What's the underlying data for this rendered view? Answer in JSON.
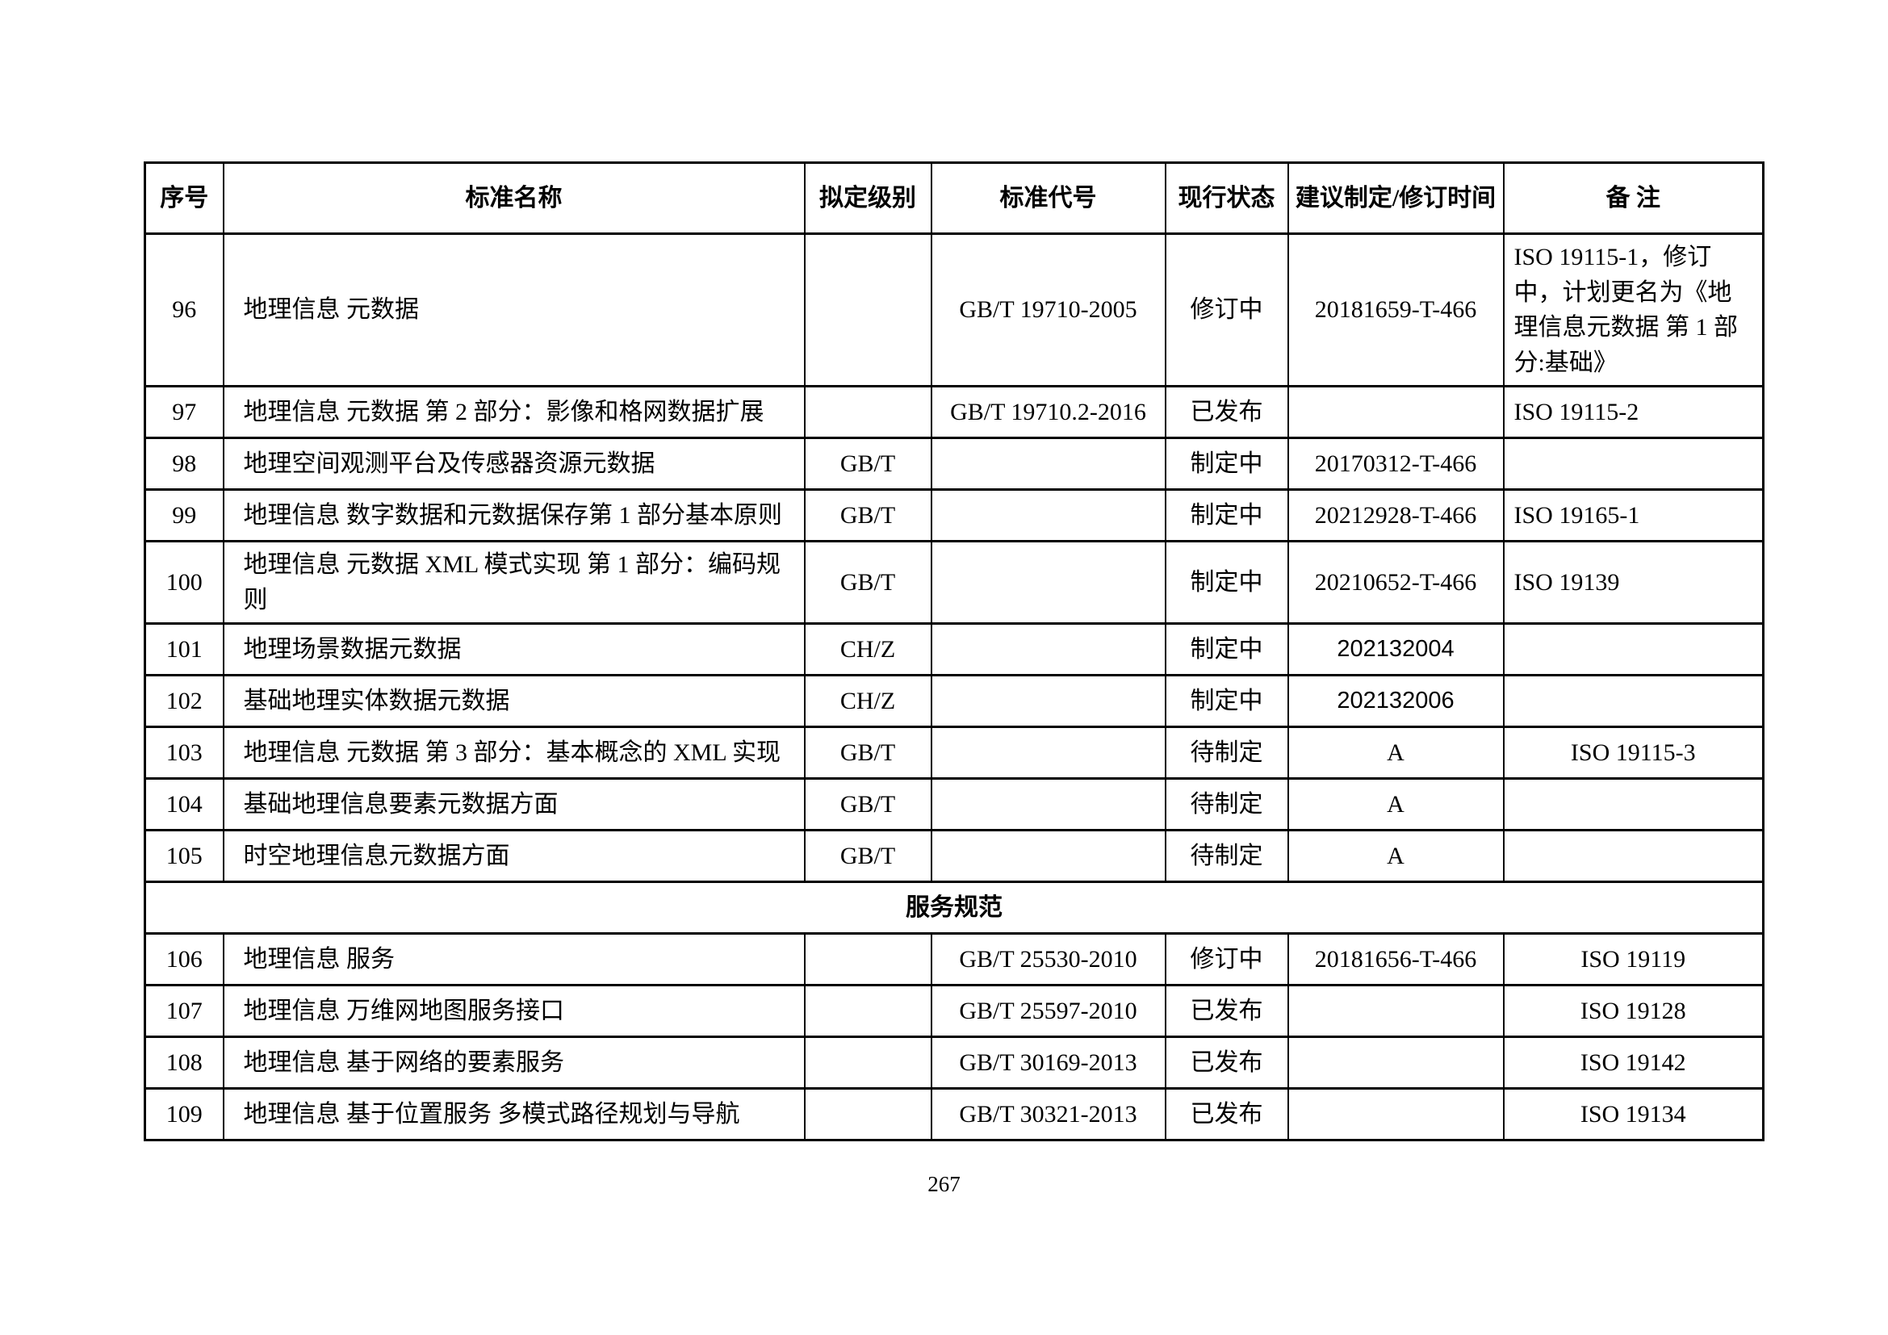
{
  "page": {
    "number": "267"
  },
  "table": {
    "headers": [
      "序号",
      "标准名称",
      "拟定级别",
      "标准代号",
      "现行状态",
      "建议制定/修订时间",
      "备 注"
    ],
    "rows": [
      {
        "no": "96",
        "name": "地理信息 元数据",
        "level": "",
        "code": "GB/T 19710-2005",
        "status": "修订中",
        "time": "20181659-T-466",
        "time_sans": false,
        "remark": "ISO 19115-1，修订中，计划更名为《地理信息元数据 第 1 部分:基础》",
        "remark_align": "left"
      },
      {
        "no": "97",
        "name": "地理信息 元数据 第 2 部分：影像和格网数据扩展",
        "level": "",
        "code": "GB/T 19710.2-2016",
        "status": "已发布",
        "time": "",
        "time_sans": false,
        "remark": "ISO 19115-2",
        "remark_align": "left"
      },
      {
        "no": "98",
        "name": "地理空间观测平台及传感器资源元数据",
        "level": "GB/T",
        "code": "",
        "status": "制定中",
        "time": "20170312-T-466",
        "time_sans": false,
        "remark": "",
        "remark_align": "left"
      },
      {
        "no": "99",
        "name": "地理信息 数字数据和元数据保存第 1 部分基本原则",
        "level": "GB/T",
        "code": "",
        "status": "制定中",
        "time": "20212928-T-466",
        "time_sans": false,
        "remark": "ISO 19165-1",
        "remark_align": "left"
      },
      {
        "no": "100",
        "name": "地理信息 元数据 XML 模式实现 第 1 部分：编码规则",
        "level": "GB/T",
        "code": "",
        "status": "制定中",
        "time": "20210652-T-466",
        "time_sans": false,
        "remark": "ISO 19139",
        "remark_align": "left"
      },
      {
        "no": "101",
        "name": "地理场景数据元数据",
        "level": "CH/Z",
        "code": "",
        "status": "制定中",
        "time": "202132004",
        "time_sans": true,
        "remark": "",
        "remark_align": "left"
      },
      {
        "no": "102",
        "name": "基础地理实体数据元数据",
        "level": "CH/Z",
        "code": "",
        "status": "制定中",
        "time": "202132006",
        "time_sans": true,
        "remark": "",
        "remark_align": "left"
      },
      {
        "no": "103",
        "name": "地理信息 元数据 第 3 部分：基本概念的 XML 实现",
        "level": "GB/T",
        "code": "",
        "status": "待制定",
        "time": "A",
        "time_sans": false,
        "remark": "ISO 19115-3",
        "remark_align": "center"
      },
      {
        "no": "104",
        "name": "基础地理信息要素元数据方面",
        "level": "GB/T",
        "code": "",
        "status": "待制定",
        "time": "A",
        "time_sans": false,
        "remark": "",
        "remark_align": "left"
      },
      {
        "no": "105",
        "name": "时空地理信息元数据方面",
        "level": "GB/T",
        "code": "",
        "status": "待制定",
        "time": "A",
        "time_sans": false,
        "remark": "",
        "remark_align": "left"
      },
      {
        "section": "服务规范"
      },
      {
        "no": "106",
        "name": "地理信息 服务",
        "level": "",
        "code": "GB/T 25530-2010",
        "status": "修订中",
        "time": "20181656-T-466",
        "time_sans": false,
        "remark": "ISO 19119",
        "remark_align": "center"
      },
      {
        "no": "107",
        "name": "地理信息 万维网地图服务接口",
        "level": "",
        "code": "GB/T 25597-2010",
        "status": "已发布",
        "time": "",
        "time_sans": false,
        "remark": "ISO 19128",
        "remark_align": "center"
      },
      {
        "no": "108",
        "name": "地理信息 基于网络的要素服务",
        "level": "",
        "code": "GB/T 30169-2013",
        "status": "已发布",
        "time": "",
        "time_sans": false,
        "remark": "ISO 19142",
        "remark_align": "center"
      },
      {
        "no": "109",
        "name": "地理信息 基于位置服务 多模式路径规划与导航",
        "level": "",
        "code": "GB/T 30321-2013",
        "status": "已发布",
        "time": "",
        "time_sans": false,
        "remark": "ISO 19134",
        "remark_align": "center"
      }
    ]
  }
}
